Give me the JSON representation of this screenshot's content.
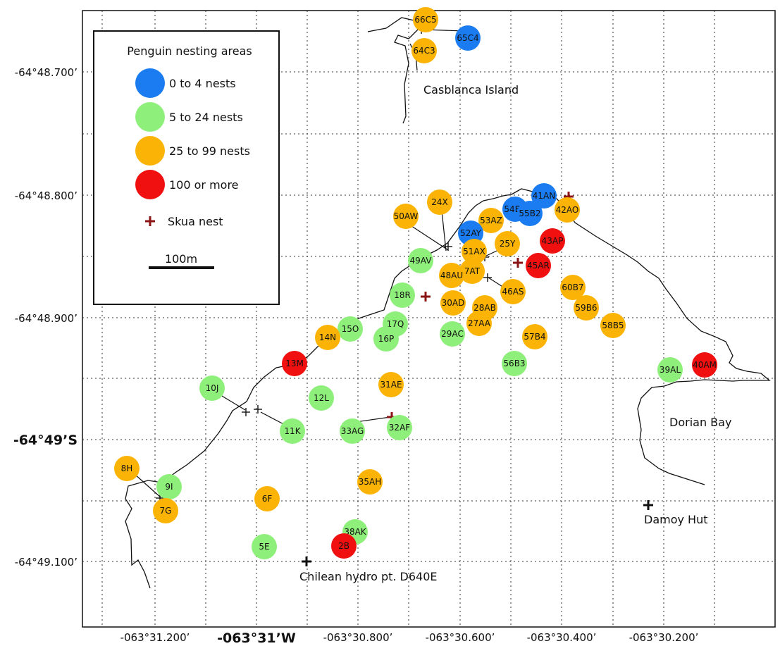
{
  "map": {
    "lat_ticks": [
      "-64°48.700’",
      "-64°48.800’",
      "-64°48.900’",
      "-64°49’S",
      "-64°49.100’"
    ],
    "lon_ticks": [
      "-063°31.200’",
      "-063°31’W",
      "-063°30.800’",
      "-063°30.600’",
      "-063°30.400’",
      "-063°30.200’"
    ],
    "places": {
      "casblanca": "Casblanca Island",
      "dorian": "Dorian Bay",
      "damoy": "Damoy Hut",
      "chilean": "Chilean hydro pt. D640E"
    }
  },
  "legend": {
    "title": "Penguin nesting areas",
    "items": [
      {
        "label": "0 to 4 nests",
        "color": "#1a7cf0"
      },
      {
        "label": "5 to 24 nests",
        "color": "#8ef07a"
      },
      {
        "label": "25 to 99 nests",
        "color": "#fbb406"
      },
      {
        "label": "100 or more",
        "color": "#f01010"
      }
    ],
    "skua_label": "Skua nest",
    "skua_color": "#8b1414",
    "scale_label": "100m"
  },
  "colonies": [
    {
      "id": "66C5",
      "cls": 2
    },
    {
      "id": "65C4",
      "cls": 0
    },
    {
      "id": "64C3",
      "cls": 2
    },
    {
      "id": "24X",
      "cls": 2
    },
    {
      "id": "50AW",
      "cls": 2
    },
    {
      "id": "53AZ",
      "cls": 2
    },
    {
      "id": "54B1",
      "cls": 0
    },
    {
      "id": "41AN",
      "cls": 0
    },
    {
      "id": "55B2",
      "cls": 0
    },
    {
      "id": "42AO",
      "cls": 2
    },
    {
      "id": "52AY",
      "cls": 0
    },
    {
      "id": "43AP",
      "cls": 3
    },
    {
      "id": "25Y",
      "cls": 2
    },
    {
      "id": "51AX",
      "cls": 2
    },
    {
      "id": "49AV",
      "cls": 1
    },
    {
      "id": "45AR",
      "cls": 3
    },
    {
      "id": "7AT",
      "cls": 2
    },
    {
      "id": "48AU",
      "cls": 2
    },
    {
      "id": "60B7",
      "cls": 2
    },
    {
      "id": "18R",
      "cls": 1
    },
    {
      "id": "46AS",
      "cls": 2
    },
    {
      "id": "30AD",
      "cls": 2
    },
    {
      "id": "28AB",
      "cls": 2
    },
    {
      "id": "59B6",
      "cls": 2
    },
    {
      "id": "17Q",
      "cls": 1
    },
    {
      "id": "27AA",
      "cls": 2
    },
    {
      "id": "58B5",
      "cls": 2
    },
    {
      "id": "15O",
      "cls": 1
    },
    {
      "id": "29AC",
      "cls": 1
    },
    {
      "id": "14N",
      "cls": 2
    },
    {
      "id": "16P",
      "cls": 1
    },
    {
      "id": "57B4",
      "cls": 2
    },
    {
      "id": "13M",
      "cls": 3
    },
    {
      "id": "56B3",
      "cls": 1
    },
    {
      "id": "40AM",
      "cls": 3
    },
    {
      "id": "39AL",
      "cls": 1
    },
    {
      "id": "31AE",
      "cls": 2
    },
    {
      "id": "10J",
      "cls": 1
    },
    {
      "id": "12L",
      "cls": 1
    },
    {
      "id": "11K",
      "cls": 1
    },
    {
      "id": "33AG",
      "cls": 1
    },
    {
      "id": "32AF",
      "cls": 1
    },
    {
      "id": "8H",
      "cls": 2
    },
    {
      "id": "9I",
      "cls": 1
    },
    {
      "id": "35AH",
      "cls": 2
    },
    {
      "id": "7G",
      "cls": 2
    },
    {
      "id": "6F",
      "cls": 2
    },
    {
      "id": "38AK",
      "cls": 1
    },
    {
      "id": "5E",
      "cls": 1
    },
    {
      "id": "2B",
      "cls": 3
    }
  ]
}
